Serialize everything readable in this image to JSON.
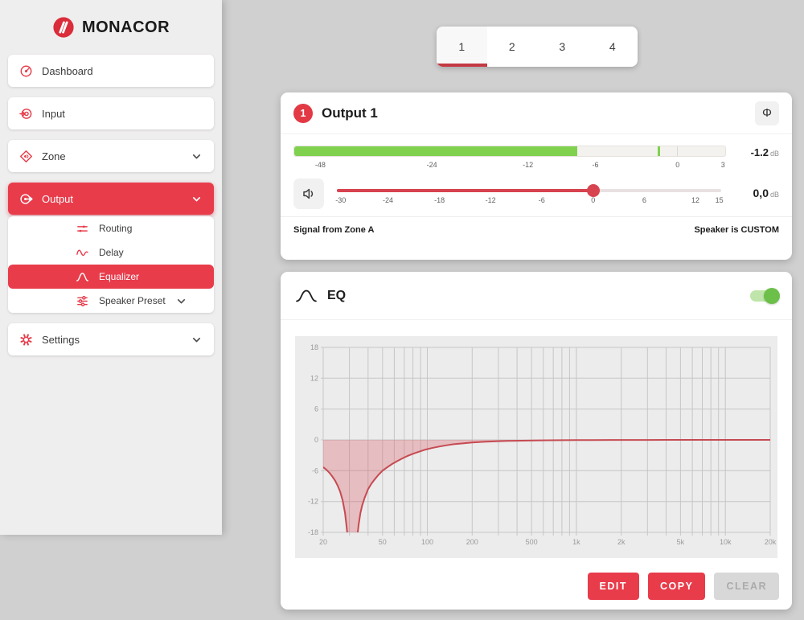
{
  "brand": {
    "name": "MONACOR"
  },
  "colors": {
    "accent_red": "#e83c4b",
    "tab_underline": "#c43a42",
    "meter_green": "#80d14e",
    "slider_red": "#d84350",
    "toggle_green": "#6cc04a",
    "toggle_track": "#bfe5aa",
    "curve": "#c64a52",
    "curve_fill": "rgba(219,90,99,0.32)",
    "chart_bg": "#ececec",
    "grid": "#c6c6c6",
    "tick_label": "#9a9a9a",
    "button_disabled_bg": "#d8d8d8",
    "button_disabled_text": "#ababab"
  },
  "sidebar": {
    "items": [
      {
        "id": "dashboard",
        "label": "Dashboard",
        "icon": "dashboard-icon",
        "chevron": false,
        "active": false,
        "children": []
      },
      {
        "id": "input",
        "label": "Input",
        "icon": "input-icon",
        "chevron": false,
        "active": false,
        "children": []
      },
      {
        "id": "zone",
        "label": "Zone",
        "icon": "zone-icon",
        "chevron": true,
        "active": false,
        "children": []
      },
      {
        "id": "output",
        "label": "Output",
        "icon": "output-icon",
        "chevron": true,
        "active": true,
        "children": [
          {
            "id": "routing",
            "label": "Routing",
            "icon": "routing-icon",
            "chevron": false,
            "active": false
          },
          {
            "id": "delay",
            "label": "Delay",
            "icon": "delay-icon",
            "chevron": false,
            "active": false
          },
          {
            "id": "equalizer",
            "label": "Equalizer",
            "icon": "equalizer-icon",
            "chevron": false,
            "active": true
          },
          {
            "id": "speaker-preset",
            "label": "Speaker Preset",
            "icon": "speaker-preset-icon",
            "chevron": true,
            "active": false
          }
        ]
      },
      {
        "id": "settings",
        "label": "Settings",
        "icon": "settings-icon",
        "chevron": true,
        "active": false,
        "children": []
      }
    ]
  },
  "tabs": {
    "items": [
      "1",
      "2",
      "3",
      "4"
    ],
    "active_index": 0
  },
  "output_panel": {
    "badge": "1",
    "title": "Output 1",
    "phase_symbol": "Φ",
    "meter": {
      "value": "-1.2",
      "unit": "dB",
      "fill_pct": 65.7,
      "peak_pct": 84.4,
      "zero_divider_pct": 88.8,
      "scale": [
        {
          "label": "-48",
          "pct": 6.2
        },
        {
          "label": "-24",
          "pct": 32
        },
        {
          "label": "-12",
          "pct": 54.2
        },
        {
          "label": "-6",
          "pct": 69.8
        },
        {
          "label": "0",
          "pct": 88.8
        },
        {
          "label": "3",
          "pct": 99.3
        }
      ]
    },
    "slider": {
      "value": "0,0",
      "unit": "dB",
      "handle_pct": 66.7,
      "scale": [
        {
          "label": "-30",
          "pct": 1
        },
        {
          "label": "-24",
          "pct": 13.3
        },
        {
          "label": "-18",
          "pct": 26.7
        },
        {
          "label": "-12",
          "pct": 40
        },
        {
          "label": "-6",
          "pct": 53.3
        },
        {
          "label": "0",
          "pct": 66.7
        },
        {
          "label": "6",
          "pct": 80
        },
        {
          "label": "12",
          "pct": 93.3
        },
        {
          "label": "15",
          "pct": 99.5
        }
      ]
    },
    "info_left": "Signal from Zone A",
    "info_right": "Speaker is CUSTOM"
  },
  "eq_panel": {
    "title": "EQ",
    "enabled": true,
    "buttons": [
      {
        "id": "edit",
        "label": "EDIT",
        "variant": "primary"
      },
      {
        "id": "copy",
        "label": "COPY",
        "variant": "primary"
      },
      {
        "id": "clear",
        "label": "CLEAR",
        "variant": "disabled"
      }
    ]
  },
  "chart_data": {
    "type": "line",
    "title": "",
    "xlabel": "",
    "ylabel": "",
    "x_scale": "log",
    "xlim": [
      20,
      20000
    ],
    "ylim": [
      -18,
      18
    ],
    "grid": true,
    "x_ticks": [
      {
        "value": 20,
        "label": "20"
      },
      {
        "value": 50,
        "label": "50"
      },
      {
        "value": 100,
        "label": "100"
      },
      {
        "value": 200,
        "label": "200"
      },
      {
        "value": 500,
        "label": "500"
      },
      {
        "value": 1000,
        "label": "1k"
      },
      {
        "value": 2000,
        "label": "2k"
      },
      {
        "value": 5000,
        "label": "5k"
      },
      {
        "value": 10000,
        "label": "10k"
      },
      {
        "value": 20000,
        "label": "20k"
      }
    ],
    "y_ticks": [
      18,
      12,
      6,
      0,
      -6,
      -12,
      -18
    ],
    "series": [
      {
        "name": "eq-response",
        "fill_to": 0,
        "points": [
          [
            20,
            -5.3
          ],
          [
            21,
            -5.8
          ],
          [
            22,
            -6.4
          ],
          [
            23,
            -7.1
          ],
          [
            24,
            -7.9
          ],
          [
            25,
            -8.9
          ],
          [
            26,
            -10.1
          ],
          [
            27,
            -11.8
          ],
          [
            28,
            -14.2
          ],
          [
            28.6,
            -16.5
          ],
          [
            29.2,
            -19
          ],
          [
            30,
            -22
          ],
          [
            31,
            -23.5
          ],
          [
            32,
            -23.5
          ],
          [
            33,
            -21.5
          ],
          [
            33.8,
            -19
          ],
          [
            34.6,
            -16.5
          ],
          [
            35.5,
            -14.3
          ],
          [
            36.5,
            -12.8
          ],
          [
            38,
            -11.2
          ],
          [
            40,
            -9.6
          ],
          [
            42,
            -8.6
          ],
          [
            44,
            -7.8
          ],
          [
            47,
            -6.8
          ],
          [
            50,
            -6.0
          ],
          [
            54,
            -5.3
          ],
          [
            58,
            -4.7
          ],
          [
            63,
            -4.1
          ],
          [
            68,
            -3.6
          ],
          [
            74,
            -3.1
          ],
          [
            80,
            -2.7
          ],
          [
            88,
            -2.3
          ],
          [
            97,
            -1.9
          ],
          [
            107,
            -1.6
          ],
          [
            120,
            -1.3
          ],
          [
            135,
            -1.05
          ],
          [
            150,
            -0.85
          ],
          [
            170,
            -0.7
          ],
          [
            200,
            -0.52
          ],
          [
            240,
            -0.38
          ],
          [
            290,
            -0.28
          ],
          [
            350,
            -0.2
          ],
          [
            430,
            -0.15
          ],
          [
            520,
            -0.11
          ],
          [
            650,
            -0.08
          ],
          [
            800,
            -0.06
          ],
          [
            1000,
            -0.04
          ],
          [
            1300,
            -0.03
          ],
          [
            1700,
            -0.02
          ],
          [
            2200,
            -0.01
          ],
          [
            3000,
            -0.01
          ],
          [
            4000,
            0
          ],
          [
            6000,
            0
          ],
          [
            10000,
            0
          ],
          [
            20000,
            0
          ]
        ]
      }
    ]
  }
}
